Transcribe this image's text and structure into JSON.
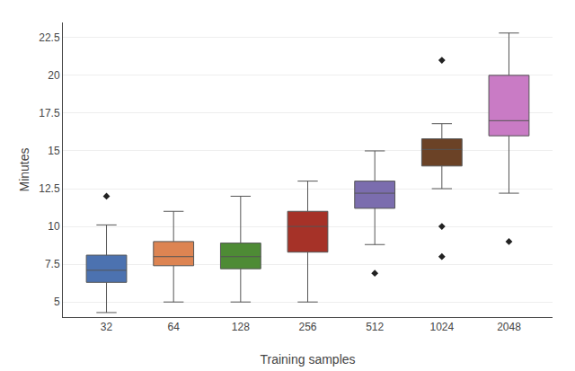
{
  "chart_data": {
    "type": "box",
    "xlabel": "Training samples",
    "ylabel": "Minutes",
    "categories": [
      32,
      64,
      128,
      256,
      512,
      1024,
      2048
    ],
    "colors": [
      "#4C72B0",
      "#DD8452",
      "#4E8B35",
      "#A63228",
      "#7B6DAE",
      "#6B4226",
      "#C97BC5"
    ],
    "boxes": [
      {
        "q1": 6.3,
        "median": 7.1,
        "q3": 8.1,
        "whislo": 4.3,
        "whishi": 10.1,
        "fliers": [
          12.0
        ]
      },
      {
        "q1": 7.4,
        "median": 8.0,
        "q3": 9.0,
        "whislo": 5.0,
        "whishi": 11.0,
        "fliers": []
      },
      {
        "q1": 7.2,
        "median": 8.0,
        "q3": 8.9,
        "whislo": 5.0,
        "whishi": 12.0,
        "fliers": []
      },
      {
        "q1": 8.3,
        "median": 10.0,
        "q3": 11.0,
        "whislo": 5.0,
        "whishi": 13.0,
        "fliers": []
      },
      {
        "q1": 11.2,
        "median": 12.2,
        "q3": 13.0,
        "whislo": 8.8,
        "whishi": 15.0,
        "fliers": [
          6.9
        ]
      },
      {
        "q1": 14.0,
        "median": 15.1,
        "q3": 15.8,
        "whislo": 12.5,
        "whishi": 16.8,
        "fliers": [
          10.0,
          8.0,
          21.0
        ]
      },
      {
        "q1": 16.0,
        "median": 17.0,
        "q3": 20.0,
        "whislo": 12.2,
        "whishi": 22.8,
        "fliers": [
          9.0
        ]
      }
    ],
    "marker": "diamond",
    "ylim": [
      4.0,
      23.5
    ],
    "yticks": [
      5,
      7.5,
      10,
      12.5,
      15,
      17.5,
      20,
      22.5
    ],
    "grid": true
  }
}
